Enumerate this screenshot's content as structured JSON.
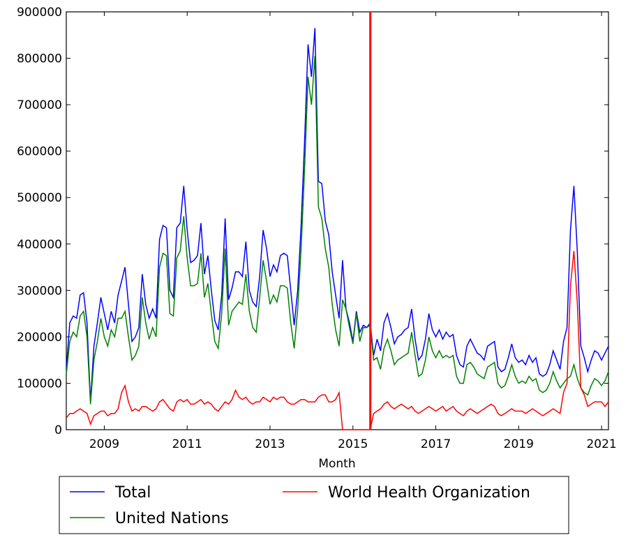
{
  "chart_data": {
    "type": "line",
    "xlabel": "Month",
    "xlim": [
      2008.083,
      2021.167
    ],
    "ylim": [
      0,
      900000
    ],
    "xticks": [
      2009,
      2011,
      2013,
      2015,
      2017,
      2019,
      2021
    ],
    "yticks": [
      0,
      100000,
      200000,
      300000,
      400000,
      500000,
      600000,
      700000,
      800000,
      900000
    ],
    "vline": {
      "x": 2015.42,
      "color": "#ff0000"
    },
    "x": [
      2008.083,
      2008.167,
      2008.25,
      2008.333,
      2008.417,
      2008.5,
      2008.583,
      2008.667,
      2008.75,
      2008.833,
      2008.917,
      2009,
      2009.083,
      2009.167,
      2009.25,
      2009.333,
      2009.417,
      2009.5,
      2009.583,
      2009.667,
      2009.75,
      2009.833,
      2009.917,
      2010,
      2010.083,
      2010.167,
      2010.25,
      2010.333,
      2010.417,
      2010.5,
      2010.583,
      2010.667,
      2010.75,
      2010.833,
      2010.917,
      2011,
      2011.083,
      2011.167,
      2011.25,
      2011.333,
      2011.417,
      2011.5,
      2011.583,
      2011.667,
      2011.75,
      2011.833,
      2011.917,
      2012,
      2012.083,
      2012.167,
      2012.25,
      2012.333,
      2012.417,
      2012.5,
      2012.583,
      2012.667,
      2012.75,
      2012.833,
      2012.917,
      2013,
      2013.083,
      2013.167,
      2013.25,
      2013.333,
      2013.417,
      2013.5,
      2013.583,
      2013.667,
      2013.75,
      2013.833,
      2013.917,
      2014,
      2014.083,
      2014.167,
      2014.25,
      2014.333,
      2014.417,
      2014.5,
      2014.583,
      2014.667,
      2014.75,
      2014.833,
      2014.917,
      2015,
      2015.083,
      2015.167,
      2015.25,
      2015.333,
      2015.417,
      2015.5,
      2015.583,
      2015.667,
      2015.75,
      2015.833,
      2015.917,
      2016,
      2016.083,
      2016.167,
      2016.25,
      2016.333,
      2016.417,
      2016.5,
      2016.583,
      2016.667,
      2016.75,
      2016.833,
      2016.917,
      2017,
      2017.083,
      2017.167,
      2017.25,
      2017.333,
      2017.417,
      2017.5,
      2017.583,
      2017.667,
      2017.75,
      2017.833,
      2017.917,
      2018,
      2018.083,
      2018.167,
      2018.25,
      2018.333,
      2018.417,
      2018.5,
      2018.583,
      2018.667,
      2018.75,
      2018.833,
      2018.917,
      2019,
      2019.083,
      2019.167,
      2019.25,
      2019.333,
      2019.417,
      2019.5,
      2019.583,
      2019.667,
      2019.75,
      2019.833,
      2019.917,
      2020,
      2020.083,
      2020.167,
      2020.25,
      2020.333,
      2020.417,
      2020.5,
      2020.583,
      2020.667,
      2020.75,
      2020.833,
      2020.917,
      2021,
      2021.083,
      2021.167
    ],
    "series": [
      {
        "name": "Total",
        "color": "#0000ff",
        "values": [
          130000,
          230000,
          245000,
          240000,
          290000,
          295000,
          230000,
          60000,
          180000,
          230000,
          285000,
          250000,
          215000,
          255000,
          230000,
          290000,
          320000,
          350000,
          270000,
          190000,
          200000,
          220000,
          335000,
          270000,
          240000,
          260000,
          240000,
          410000,
          440000,
          435000,
          300000,
          285000,
          435000,
          445000,
          525000,
          430000,
          360000,
          365000,
          375000,
          445000,
          335000,
          375000,
          300000,
          235000,
          215000,
          290000,
          455000,
          280000,
          305000,
          340000,
          340000,
          330000,
          405000,
          300000,
          275000,
          265000,
          330000,
          430000,
          390000,
          330000,
          355000,
          340000,
          375000,
          380000,
          375000,
          300000,
          225000,
          300000,
          440000,
          620000,
          830000,
          760000,
          865000,
          535000,
          530000,
          450000,
          420000,
          340000,
          290000,
          240000,
          365000,
          260000,
          230000,
          190000,
          255000,
          210000,
          225000,
          220000,
          230000,
          160000,
          195000,
          170000,
          230000,
          250000,
          220000,
          185000,
          200000,
          205000,
          215000,
          220000,
          260000,
          195000,
          150000,
          160000,
          195000,
          250000,
          215000,
          200000,
          215000,
          195000,
          210000,
          200000,
          205000,
          160000,
          140000,
          135000,
          180000,
          195000,
          180000,
          165000,
          160000,
          150000,
          180000,
          185000,
          190000,
          135000,
          125000,
          130000,
          155000,
          185000,
          155000,
          145000,
          150000,
          140000,
          160000,
          145000,
          155000,
          120000,
          115000,
          120000,
          140000,
          170000,
          150000,
          130000,
          190000,
          220000,
          430000,
          525000,
          380000,
          180000,
          155000,
          125000,
          150000,
          170000,
          165000,
          150000,
          165000,
          180000
        ]
      },
      {
        "name": "United Nations",
        "color": "#008000",
        "values": [
          120000,
          190000,
          210000,
          200000,
          245000,
          255000,
          200000,
          55000,
          150000,
          190000,
          240000,
          200000,
          180000,
          215000,
          200000,
          240000,
          240000,
          255000,
          200000,
          150000,
          160000,
          180000,
          285000,
          230000,
          195000,
          220000,
          200000,
          350000,
          380000,
          375000,
          250000,
          245000,
          370000,
          385000,
          460000,
          370000,
          310000,
          310000,
          315000,
          380000,
          285000,
          315000,
          250000,
          190000,
          175000,
          250000,
          390000,
          225000,
          255000,
          265000,
          275000,
          270000,
          335000,
          255000,
          220000,
          210000,
          285000,
          365000,
          320000,
          270000,
          290000,
          275000,
          310000,
          310000,
          305000,
          230000,
          175000,
          260000,
          390000,
          560000,
          760000,
          700000,
          805000,
          480000,
          455000,
          390000,
          350000,
          270000,
          215000,
          180000,
          280000,
          260000,
          220000,
          185000,
          250000,
          190000,
          220000,
          220000,
          225000,
          150000,
          155000,
          130000,
          175000,
          195000,
          170000,
          140000,
          150000,
          155000,
          160000,
          165000,
          210000,
          160000,
          115000,
          120000,
          150000,
          200000,
          170000,
          155000,
          170000,
          155000,
          160000,
          155000,
          160000,
          115000,
          100000,
          100000,
          140000,
          145000,
          135000,
          120000,
          115000,
          110000,
          135000,
          140000,
          145000,
          100000,
          90000,
          95000,
          115000,
          140000,
          115000,
          100000,
          105000,
          100000,
          115000,
          105000,
          110000,
          85000,
          80000,
          85000,
          100000,
          125000,
          105000,
          90000,
          100000,
          110000,
          115000,
          140000,
          110000,
          90000,
          80000,
          75000,
          95000,
          110000,
          105000,
          95000,
          105000,
          125000
        ]
      },
      {
        "name": "World Health Organization",
        "color": "#ff0000",
        "values": [
          25000,
          35000,
          35000,
          40000,
          45000,
          40000,
          35000,
          12000,
          30000,
          35000,
          40000,
          40000,
          30000,
          35000,
          35000,
          45000,
          80000,
          95000,
          60000,
          40000,
          45000,
          40000,
          50000,
          50000,
          45000,
          40000,
          45000,
          60000,
          65000,
          55000,
          45000,
          40000,
          60000,
          65000,
          60000,
          65000,
          55000,
          55000,
          60000,
          65000,
          55000,
          60000,
          55000,
          45000,
          40000,
          50000,
          60000,
          55000,
          65000,
          85000,
          70000,
          65000,
          70000,
          60000,
          55000,
          60000,
          60000,
          70000,
          65000,
          60000,
          70000,
          65000,
          70000,
          70000,
          60000,
          55000,
          55000,
          60000,
          65000,
          65000,
          60000,
          60000,
          60000,
          70000,
          75000,
          75000,
          60000,
          60000,
          65000,
          80000,
          0,
          0,
          0,
          0,
          0,
          0,
          0,
          0,
          0,
          35000,
          40000,
          45000,
          55000,
          60000,
          50000,
          45000,
          50000,
          55000,
          50000,
          45000,
          50000,
          40000,
          35000,
          40000,
          45000,
          50000,
          45000,
          40000,
          45000,
          50000,
          40000,
          45000,
          50000,
          40000,
          35000,
          30000,
          40000,
          45000,
          40000,
          35000,
          40000,
          45000,
          50000,
          55000,
          50000,
          35000,
          30000,
          35000,
          40000,
          45000,
          40000,
          40000,
          40000,
          35000,
          40000,
          45000,
          40000,
          35000,
          30000,
          35000,
          40000,
          45000,
          40000,
          35000,
          80000,
          100000,
          310000,
          385000,
          270000,
          90000,
          75000,
          50000,
          55000,
          60000,
          60000,
          60000,
          50000,
          60000
        ]
      }
    ]
  }
}
